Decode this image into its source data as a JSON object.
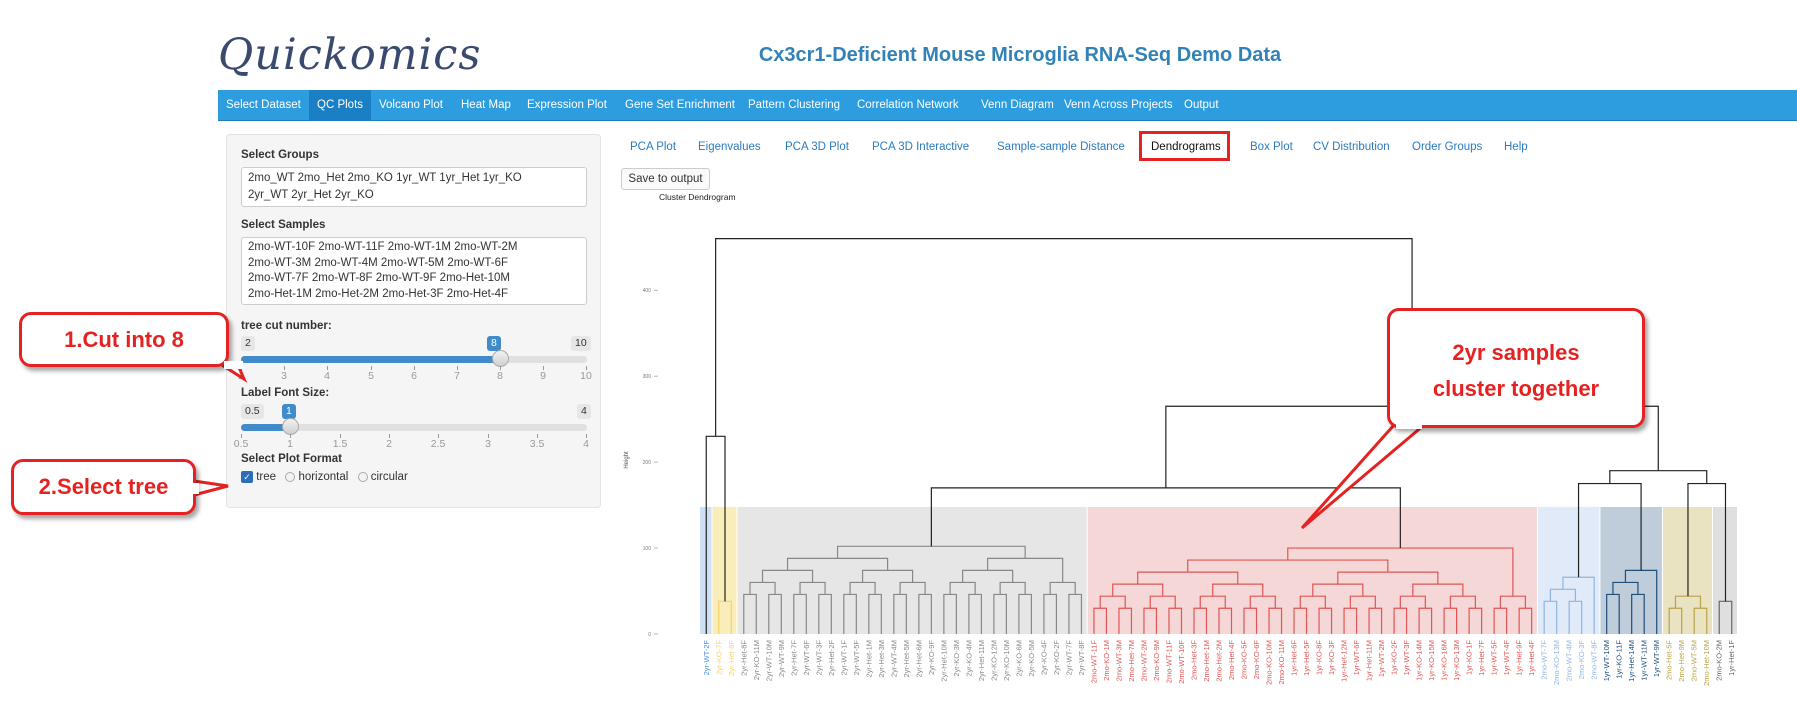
{
  "app": {
    "logo": "Quickomics",
    "title": "Cx3cr1-Deficient Mouse Microglia RNA-Seq Demo Data"
  },
  "navbar": {
    "items": [
      {
        "label": "Select Dataset"
      },
      {
        "label": "QC Plots",
        "active": true
      },
      {
        "label": "Volcano Plot"
      },
      {
        "label": "Heat Map"
      },
      {
        "label": "Expression Plot"
      },
      {
        "label": "Gene Set Enrichment"
      },
      {
        "label": "Pattern Clustering"
      },
      {
        "label": "Correlation Network"
      },
      {
        "label": "Venn Diagram"
      },
      {
        "label": "Venn Across Projects"
      },
      {
        "label": "Output"
      }
    ]
  },
  "sidebar": {
    "groups_label": "Select Groups",
    "groups_lines": [
      "2mo_WT  2mo_Het  2mo_KO  1yr_WT  1yr_Het  1yr_KO",
      "2yr_WT  2yr_Het  2yr_KO"
    ],
    "samples_label": "Select Samples",
    "samples_lines": [
      "2mo-WT-10F  2mo-WT-11F  2mo-WT-1M  2mo-WT-2M",
      "2mo-WT-3M  2mo-WT-4M  2mo-WT-5M  2mo-WT-6F",
      "2mo-WT-7F  2mo-WT-8F  2mo-WT-9F  2mo-Het-10M",
      "2mo-Het-1M  2mo-Het-2M  2mo-Het-3F  2mo-Het-4F"
    ],
    "tree_cut_label": "tree cut number:",
    "tree_cut": {
      "min": 2,
      "max": 10,
      "value": 8,
      "min_label": "2",
      "max_label": "10",
      "value_label": "8",
      "ticks": [
        "2",
        "3",
        "4",
        "5",
        "6",
        "7",
        "8",
        "9",
        "10"
      ]
    },
    "font_size_label": "Label Font Size:",
    "font_size": {
      "min": 0.5,
      "max": 4,
      "value": 1,
      "min_label": "0.5",
      "max_label": "4",
      "value_label": "1",
      "ticks": [
        "0.5",
        "1",
        "1.5",
        "2",
        "2.5",
        "3",
        "3.5",
        "4"
      ]
    },
    "plot_format_label": "Select Plot Format",
    "plot_format_options": [
      "tree",
      "horizontal",
      "circular"
    ],
    "plot_format_selected": "tree"
  },
  "tabs": {
    "items": [
      "PCA Plot",
      "Eigenvalues",
      "PCA 3D Plot",
      "PCA 3D Interactive",
      "Sample-sample Distance",
      "Dendrograms",
      "Box Plot",
      "CV Distribution",
      "Order Groups",
      "Help"
    ],
    "active": "Dendrograms"
  },
  "save_button": "Save to output",
  "callouts": {
    "cut": "1.Cut into 8",
    "select_tree": "2.Select tree",
    "cluster_line1": "2yr samples",
    "cluster_line2": "cluster together"
  },
  "chart_data": {
    "type": "dendrogram",
    "title": "Cluster Dendrogram",
    "ylabel": "Height",
    "y_ticks": [
      0,
      100,
      200,
      300,
      400
    ],
    "ylim": [
      0,
      470
    ],
    "cluster_colors": [
      "#4a90d9",
      "#f5d36b",
      "#888888",
      "#e05555",
      "#8fb4e3",
      "#1f4e79",
      "#b8a34a",
      "#666666"
    ],
    "clusters": [
      {
        "color": "#4a90d9",
        "box": "#bcd6f0",
        "labels": [
          "2yr-WT-2F"
        ]
      },
      {
        "color": "#f5d36b",
        "box": "#f7e7a3",
        "labels": [
          "2yr-KO-7F",
          "2yr-Het-8F"
        ]
      },
      {
        "color": "#888888",
        "box": "#dddddd",
        "labels": [
          "2yr-Het-8F",
          "2yr-KO-11M",
          "2yr-WT-10M",
          "2yr-WT-9M",
          "2yr-Het-7F",
          "2yr-WT-6F",
          "2yr-WT-3F",
          "2yr-Het-2F",
          "2yr-WT-1F",
          "2yr-WT-5F",
          "2yr-Het-1M",
          "2yr-Het-3M",
          "2yr-WT-4M",
          "2yr-Het-5M",
          "2yr-Het-6M",
          "2yr-KO-9F",
          "2yr-Het-10M",
          "2yr-KO-3M",
          "2yr-KO-4M",
          "2yr-Het-11M",
          "2yr-KO-12M",
          "2yr-KO-10M",
          "2yr-KO-6M",
          "2yr-KO-5M",
          "2yr-KO-4F",
          "2yr-KO-2F",
          "2yr-WT-7F",
          "2yr-WT-8F"
        ]
      },
      {
        "color": "#e05555",
        "box": "#f3caca",
        "labels": [
          "2mo-WT-11F",
          "2mo-KO-1M",
          "2mo-WT-3M",
          "2mo-Het-7M",
          "2mo-WT-2M",
          "2mo-KO-9M",
          "2mo-WT-11F",
          "2mo-WT-10F",
          "2mo-Het-3F",
          "2mo-Het-1M",
          "2mo-Het-2M",
          "2mo-Het-4F",
          "2mo-KO-5F",
          "2mo-KO-6F",
          "2mo-KO-10M",
          "2mo-KO-11M",
          "1yr-Het-6F",
          "1yr-Het-5F",
          "1yr-KO-8F",
          "1yr-KO-3F",
          "1yr-Het-12M",
          "1yr-WT-6F",
          "1yr-Het-11M",
          "1yr-WT-2M",
          "1yr-KO-2F",
          "1yr-WT-3F",
          "1yr-KO-14M",
          "1yr-KO-15M",
          "1yr-KO-16M",
          "1yr-KO-13M",
          "1yr-KO-1F",
          "1yr-Het-7F",
          "1yr-WT-5F",
          "1yr-WT-4F",
          "1yr-Het-9F",
          "1yr-Het-4F"
        ]
      },
      {
        "color": "#8fb4e3",
        "box": "#d6e3f5",
        "labels": [
          "2mo-WT-7F",
          "2mo-KO-13M",
          "2mo-WT-4M",
          "2mo-KO-3F",
          "2mo-WT-8F"
        ]
      },
      {
        "color": "#1f4e79",
        "box": "#a9bccf",
        "labels": [
          "1yr-WT-10M",
          "1yr-KO-11F",
          "1yr-Het-14M",
          "1yr-WT-11M",
          "1yr-WT-9M"
        ]
      },
      {
        "color": "#b8a34a",
        "box": "#e3d9ad",
        "labels": [
          "2mo-Het-5F",
          "2mo-Het-9M",
          "2mo-WT-5M",
          "2mo-Het-10M"
        ]
      },
      {
        "color": "#666666",
        "box": "#d4d4d4",
        "labels": [
          "2mo-KO-2M",
          "1yr-Het-1F"
        ]
      }
    ]
  }
}
